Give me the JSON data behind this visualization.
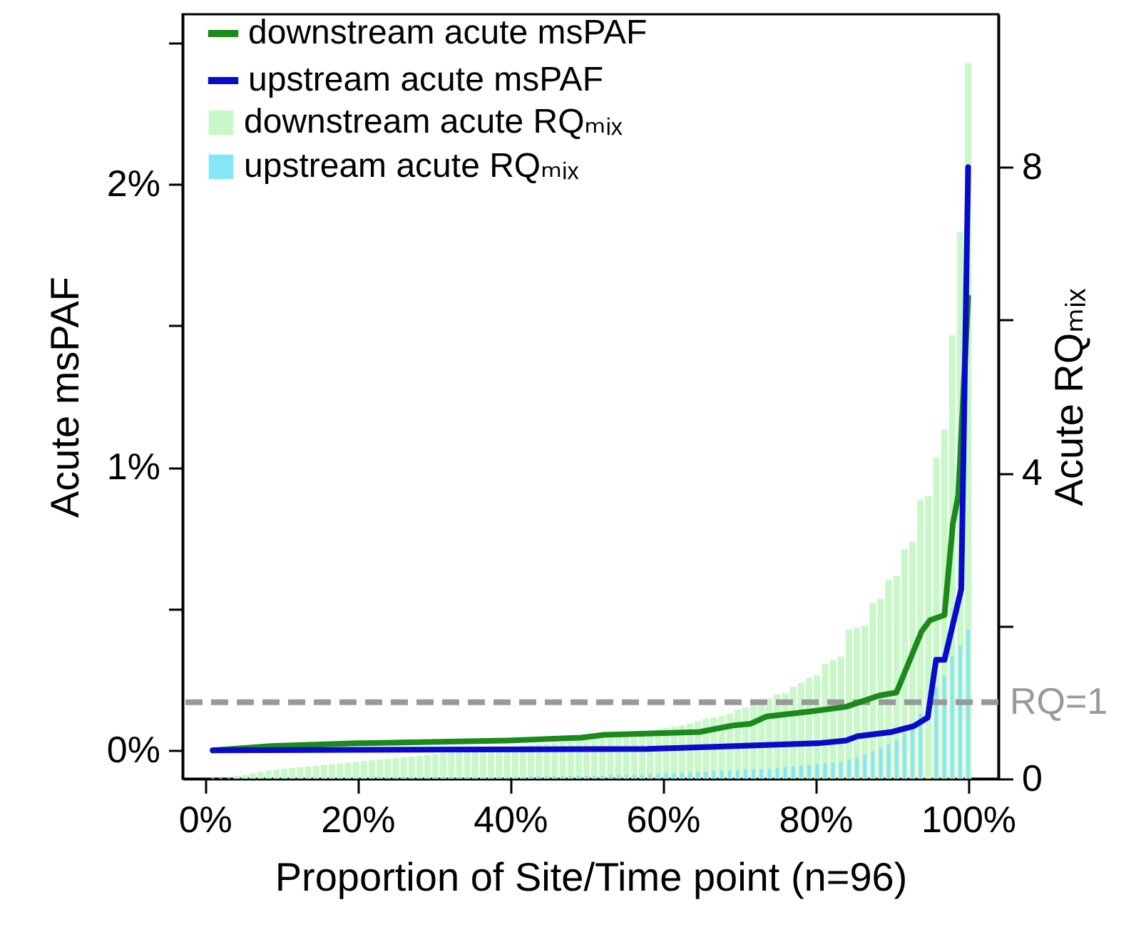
{
  "chart_data": {
    "type": "bar",
    "xlabel": "Proportion of Site/Time point (n=96)",
    "ylabel": "Acute msPAF",
    "y2label": "Acute RQₘᵢₓ",
    "x": [
      1.04,
      2.08,
      3.13,
      4.17,
      5.21,
      6.25,
      7.29,
      8.33,
      9.38,
      10.42,
      11.46,
      12.5,
      13.54,
      14.58,
      15.63,
      16.67,
      17.71,
      18.75,
      19.79,
      20.83,
      21.88,
      22.92,
      23.96,
      25,
      26.04,
      27.08,
      28.13,
      29.17,
      30.21,
      31.25,
      32.29,
      33.33,
      34.38,
      35.42,
      36.46,
      37.5,
      38.54,
      39.58,
      40.63,
      41.67,
      42.71,
      43.75,
      44.79,
      45.83,
      46.88,
      47.92,
      48.96,
      50,
      51.04,
      52.08,
      53.13,
      54.17,
      55.21,
      56.25,
      57.29,
      58.33,
      59.38,
      60.42,
      61.46,
      62.5,
      63.54,
      64.58,
      65.63,
      66.67,
      67.71,
      68.75,
      69.79,
      70.83,
      71.88,
      72.92,
      73.96,
      75,
      76.04,
      77.08,
      78.13,
      79.17,
      80.21,
      81.25,
      82.29,
      83.33,
      84.38,
      85.42,
      86.46,
      87.5,
      88.54,
      89.58,
      90.63,
      91.67,
      92.71,
      93.75,
      94.79,
      95.83,
      96.88,
      97.92,
      98.96,
      100
    ],
    "series": [
      {
        "name": "downstream acute msPAF",
        "type": "line",
        "color": "#1b8a1b",
        "x": [
          1.04,
          8.7,
          20,
          39.7,
          49.3,
          52.3,
          64.8,
          69.2,
          71.5,
          73.6,
          79.5,
          84,
          88.4,
          90.6,
          93.9,
          95,
          96.9,
          98,
          98.7,
          100
        ],
        "values": [
          0,
          0.015,
          0.025,
          0.035,
          0.045,
          0.055,
          0.065,
          0.088,
          0.094,
          0.12,
          0.138,
          0.154,
          0.194,
          0.204,
          0.42,
          0.46,
          0.478,
          0.8,
          0.9,
          1.6
        ]
      },
      {
        "name": "upstream acute msPAF",
        "type": "line",
        "color": "#0a0acc",
        "x": [
          1.04,
          58,
          80.3,
          84,
          85.5,
          90,
          92.9,
          94.7,
          95.8,
          96.9,
          99.1,
          100
        ],
        "values": [
          0,
          0.005,
          0.025,
          0.035,
          0.05,
          0.065,
          0.086,
          0.116,
          0.32,
          0.32,
          0.57,
          2.06
        ]
      },
      {
        "name": "downstream acute RQₘᵢₓ",
        "axis": "y2",
        "color": "#c8f7c8",
        "values": [
          0,
          null,
          null,
          0.04,
          0.05,
          0.07,
          0.09,
          0.11,
          0.12,
          0.13,
          0.14,
          0.15,
          0.16,
          0.17,
          0.18,
          0.19,
          0.2,
          0.21,
          0.22,
          0.23,
          0.24,
          0.25,
          0.26,
          0.27,
          0.28,
          0.29,
          0.3,
          0.31,
          0.32,
          0.33,
          0.34,
          0.35,
          0.36,
          0.37,
          0.38,
          0.39,
          0.4,
          0.41,
          0.42,
          0.43,
          0.44,
          0.45,
          0.46,
          0.47,
          0.48,
          0.49,
          0.5,
          0.51,
          0.52,
          0.53,
          0.54,
          0.55,
          0.57,
          0.58,
          0.6,
          0.62,
          0.64,
          0.66,
          0.68,
          0.7,
          0.72,
          0.75,
          0.78,
          0.8,
          0.82,
          0.85,
          0.9,
          0.93,
          0.97,
          1.0,
          1.05,
          1.1,
          1.12,
          1.2,
          1.25,
          1.32,
          1.35,
          1.5,
          1.55,
          1.6,
          1.95,
          1.97,
          2.0,
          2.3,
          2.35,
          2.6,
          2.65,
          3.0,
          3.1,
          3.65,
          3.7,
          4.2,
          4.57,
          5.8,
          7.15,
          9.36
        ]
      },
      {
        "name": "upstream acute RQₘᵢₓ",
        "axis": "y2",
        "color": "#84e6f7",
        "values": [
          0.01,
          0.01,
          0.01,
          0.01,
          0.01,
          0.01,
          0.01,
          0.01,
          0.01,
          0.01,
          0.01,
          0.01,
          0.01,
          0.01,
          0.01,
          0.01,
          0.01,
          0.01,
          0.01,
          0.01,
          0.02,
          0.02,
          0.02,
          0.02,
          0.02,
          0.02,
          0.02,
          0.02,
          0.02,
          0.02,
          0.02,
          0.02,
          0.02,
          0.02,
          0.02,
          0.02,
          0.02,
          0.02,
          0.02,
          0.02,
          0.03,
          0.03,
          0.03,
          0.03,
          0.03,
          0.04,
          0.04,
          0.04,
          0.04,
          0.04,
          0.05,
          0.05,
          0.05,
          0.05,
          0.05,
          0.06,
          0.06,
          0.07,
          0.07,
          0.08,
          0.08,
          0.09,
          0.09,
          0.1,
          0.1,
          0.11,
          0.11,
          0.12,
          0.12,
          0.12,
          0.13,
          0.14,
          0.15,
          0.16,
          0.17,
          0.18,
          0.19,
          0.2,
          0.21,
          0.22,
          0.25,
          0.28,
          0.32,
          0.36,
          0.4,
          0.45,
          0.5,
          0.6,
          0.7,
          0.85,
          null,
          1.2,
          1.35,
          1.6,
          1.75,
          1.95
        ]
      }
    ],
    "xlim": [
      -2.92,
      103.96
    ],
    "xticks": [
      {
        "value": 0,
        "label": "0%"
      },
      {
        "value": 20,
        "label": "20%"
      },
      {
        "value": 40,
        "label": "40%"
      },
      {
        "value": 60,
        "label": "60%"
      },
      {
        "value": 80,
        "label": "80%"
      },
      {
        "value": 100,
        "label": "100%"
      }
    ],
    "ylim": [
      -0.1,
      2.6
    ],
    "yticks": [
      {
        "value": 0,
        "label": "0%"
      },
      {
        "value": 0.5,
        "label": null
      },
      {
        "value": 1,
        "label": "1%"
      },
      {
        "value": 1.5,
        "label": null
      },
      {
        "value": 2,
        "label": "2%"
      },
      {
        "value": 2.5,
        "label": null
      }
    ],
    "y2lim": [
      0,
      10
    ],
    "y2ticks": [
      0,
      {
        "value": 2,
        "label": null
      },
      4,
      {
        "value": 6,
        "label": null
      },
      8
    ],
    "ref_lines": [
      {
        "axis": "y2",
        "value": 1,
        "label": "RQ=1",
        "color": "#999999",
        "line_style": "dashed"
      }
    ],
    "legend": "top left"
  }
}
